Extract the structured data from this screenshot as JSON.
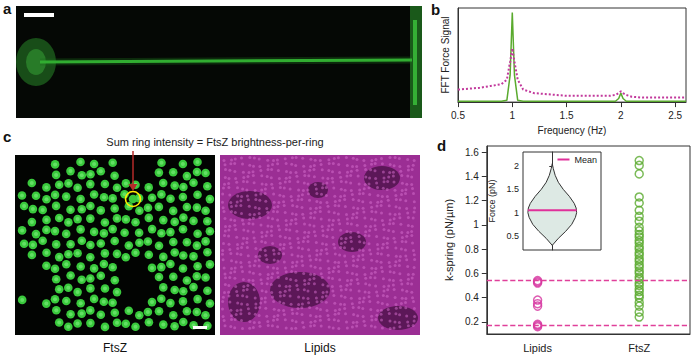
{
  "images": [
    {
      "panel": "a"
    },
    {
      "panel": "c",
      "annotation": "Sum ring intensity = FtsZ brightness-per-ring",
      "labels": [
        "FtsZ",
        "Lipids"
      ]
    }
  ],
  "chart_data": [
    {
      "panel": "b",
      "type": "line",
      "x_label": "Frequency (Hz)",
      "y_label": "FFT Force Signal",
      "x": [
        0.5,
        0.6,
        0.7,
        0.8,
        0.9,
        0.95,
        0.98,
        1.0,
        1.02,
        1.05,
        1.1,
        1.2,
        1.3,
        1.4,
        1.5,
        1.6,
        1.7,
        1.8,
        1.9,
        1.95,
        1.98,
        2.0,
        2.02,
        2.05,
        2.1,
        2.2,
        2.3,
        2.4,
        2.5,
        2.6
      ],
      "series": [
        {
          "color": "#5aaa2e",
          "line_style": "solid",
          "values": [
            0.01,
            0.01,
            0.01,
            0.01,
            0.01,
            0.02,
            0.3,
            1.0,
            0.3,
            0.02,
            0.01,
            0.01,
            0.01,
            0.01,
            0.01,
            0.01,
            0.01,
            0.01,
            0.01,
            0.01,
            0.04,
            0.1,
            0.04,
            0.01,
            0.01,
            0.01,
            0.01,
            0.01,
            0.01,
            0.01
          ]
        },
        {
          "color": "#c2399c",
          "line_style": "dotted",
          "values": [
            0.14,
            0.15,
            0.16,
            0.18,
            0.2,
            0.25,
            0.45,
            0.6,
            0.45,
            0.25,
            0.14,
            0.1,
            0.09,
            0.08,
            0.07,
            0.07,
            0.07,
            0.07,
            0.07,
            0.08,
            0.1,
            0.12,
            0.1,
            0.08,
            0.06,
            0.05,
            0.05,
            0.05,
            0.05,
            0.05
          ]
        }
      ],
      "xlim": [
        0.5,
        2.6
      ],
      "xticks": [
        0.5,
        1,
        1.5,
        2,
        2.5
      ],
      "ylim": [
        0,
        1.05
      ],
      "yticks": [],
      "tick_labels": "x",
      "grid": false
    },
    {
      "panel": "d",
      "type": "scatter",
      "y_label": "k-spring (pN/µm)",
      "categories": [
        "Lipids",
        "FtsZ"
      ],
      "values": [
        [
          0.54,
          0.53,
          0.52,
          0.38,
          0.35,
          0.33,
          0.18,
          0.17,
          0.16
        ],
        [
          1.53,
          1.49,
          1.42,
          1.23,
          1.18,
          1.12,
          1.07,
          1.03,
          0.98,
          0.95,
          0.92,
          0.9,
          0.87,
          0.85,
          0.82,
          0.8,
          0.77,
          0.75,
          0.72,
          0.7,
          0.67,
          0.65,
          0.62,
          0.6,
          0.57,
          0.55,
          0.52,
          0.5,
          0.47,
          0.45,
          0.42,
          0.4,
          0.36,
          0.33,
          0.28,
          0.24
        ]
      ],
      "colors": [
        "#d6339f",
        "#5aaa2e"
      ],
      "marker": "open_circle",
      "ylim": [
        0.1,
        1.65
      ],
      "yticks": [
        0.2,
        0.4,
        0.6,
        0.8,
        1,
        1.2,
        1.4,
        1.6
      ],
      "hlines": {
        "values": [
          0.17,
          0.54
        ],
        "color": "#e0409a",
        "line_style": "dashed"
      },
      "grid": false
    },
    {
      "type": "violin",
      "y_label": "Force (pN)",
      "density": {
        "y": [
          0.3,
          0.45,
          0.6,
          0.75,
          0.9,
          1.0,
          1.1,
          1.2,
          1.35,
          1.5,
          1.65,
          1.8,
          1.95,
          2.05
        ],
        "width": [
          0,
          0.25,
          0.55,
          0.8,
          0.95,
          1.0,
          0.98,
          0.9,
          0.7,
          0.45,
          0.25,
          0.12,
          0.04,
          0
        ]
      },
      "color": "#dde9e4",
      "mean": {
        "name": "Mean",
        "value": 1.05,
        "color": "#e0309a"
      },
      "ylim": [
        0.2,
        2.3
      ],
      "yticks": [
        0.5,
        1,
        1.5,
        2
      ],
      "legend": "upper right",
      "tick_labels": "y",
      "grid": false
    }
  ]
}
